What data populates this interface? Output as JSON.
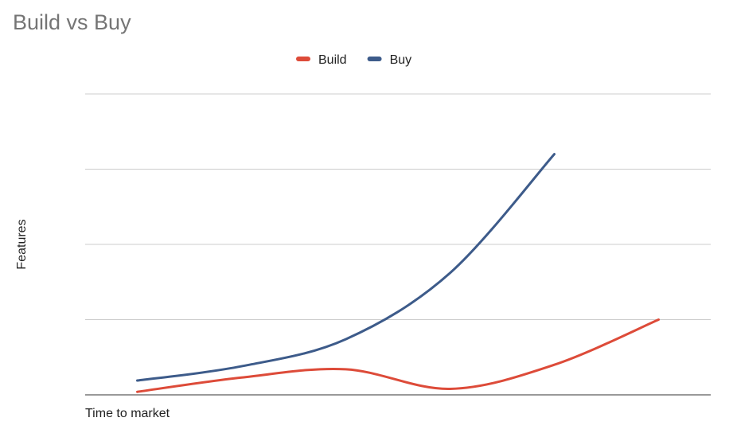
{
  "chart_data": {
    "type": "line",
    "title": "Build vs Buy",
    "x_label": "Time to market",
    "y_label": "Features",
    "categories": [
      null,
      null,
      null,
      null,
      null,
      null
    ],
    "series": [
      {
        "name": "Build",
        "color": "#dd4b39",
        "values": [
          0.04,
          0.23,
          0.34,
          0.08,
          0.4,
          1.0
        ]
      },
      {
        "name": "Buy",
        "color": "#3d5b8a",
        "values": [
          0.19,
          0.38,
          0.74,
          1.62,
          3.2,
          null
        ]
      }
    ],
    "ylim": [
      0,
      4
    ],
    "yticks": [
      0,
      1,
      2,
      3,
      4
    ],
    "grid": true,
    "smooth": true,
    "legend": "top"
  }
}
